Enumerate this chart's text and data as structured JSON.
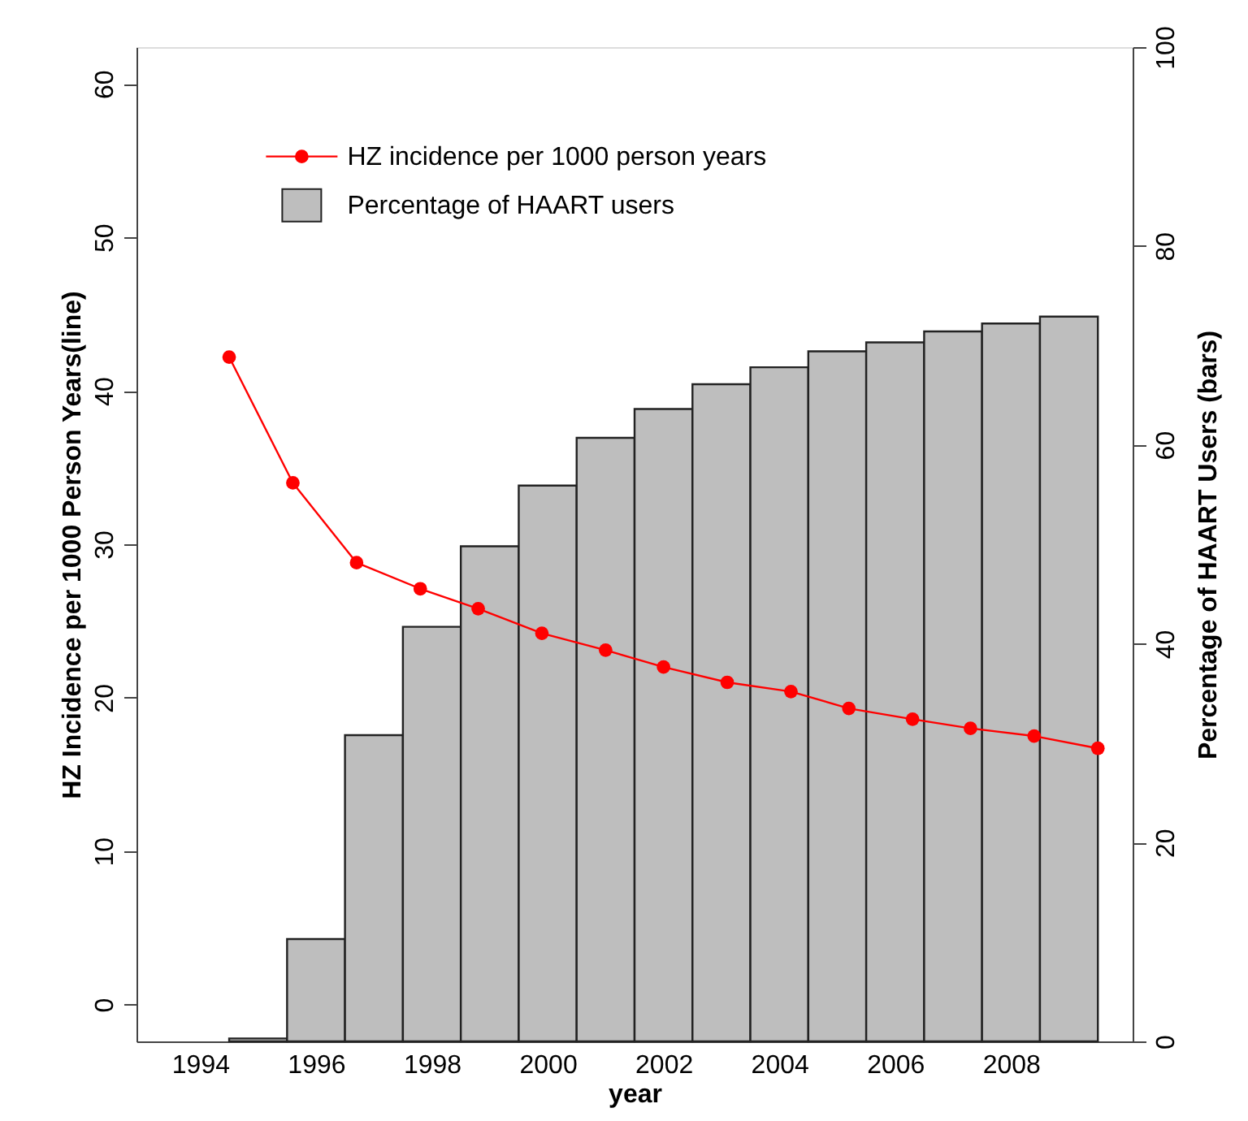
{
  "chart_data": {
    "type": "bar",
    "xlabel": "year",
    "ylabel": "HZ Incidence per 1000 Person Years(line)",
    "y2label": "Percentage of HAART Users (bars)",
    "xlim": [
      1992.9,
      2010.1
    ],
    "xticks": [
      1994,
      1996,
      1998,
      2000,
      2002,
      2004,
      2006,
      2008
    ],
    "ylim": [
      -2.4,
      62.4
    ],
    "yticks": [
      0,
      10,
      20,
      30,
      40,
      50,
      60
    ],
    "y2lim": [
      0,
      100
    ],
    "y2ticks": [
      0,
      20,
      40,
      60,
      80,
      100
    ],
    "legend": "top left",
    "marker": "circle",
    "series": [
      {
        "name": "HZ incidence per 1000 person years",
        "type": "line",
        "axis": "y",
        "color": "#ff0000",
        "x": [
          1994.5,
          1995.6,
          1996.7,
          1997.8,
          1998.8,
          1999.9,
          2001.0,
          2002.0,
          2003.1,
          2004.2,
          2005.2,
          2006.3,
          2007.3,
          2008.4,
          2009.5
        ],
        "values": [
          42.2,
          34.0,
          28.8,
          27.1,
          25.8,
          24.2,
          23.1,
          22.0,
          21.0,
          20.4,
          19.3,
          18.6,
          18.0,
          17.5,
          16.7
        ]
      },
      {
        "name": "Percentage of HAART users",
        "axis": "y2",
        "color": "#bebebe",
        "x": [
          1995,
          1996,
          1997,
          1998,
          1999,
          2000,
          2001,
          2002,
          2003,
          2004,
          2005,
          2006,
          2007,
          2008,
          2009
        ],
        "values": [
          0.3,
          10.3,
          30.8,
          41.7,
          49.8,
          55.9,
          60.7,
          63.6,
          66.1,
          67.8,
          69.4,
          70.3,
          71.4,
          72.2,
          72.9
        ]
      }
    ]
  }
}
